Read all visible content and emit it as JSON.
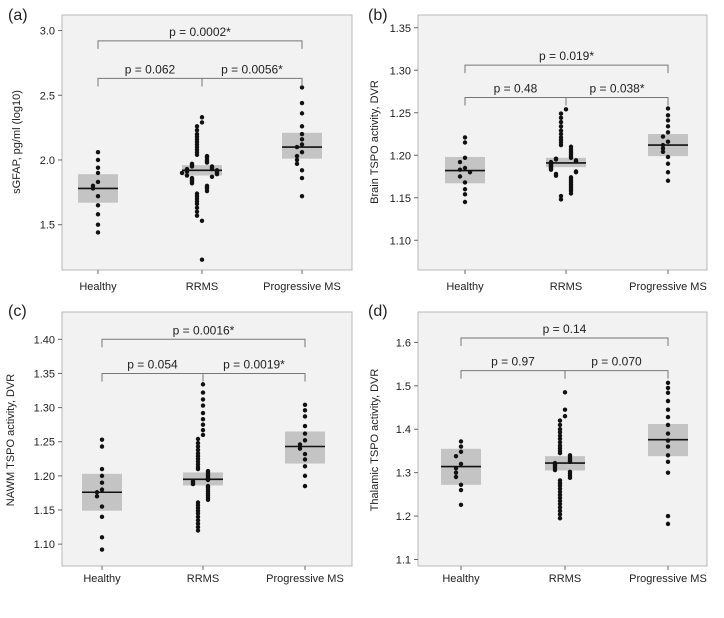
{
  "chart_data": [
    {
      "type": "scatter",
      "panel_label": "(a)",
      "ylabel": "sGFAP, pg/ml (log10)",
      "xlabel": "",
      "categories": [
        "Healthy",
        "RRMS",
        "Progressive MS"
      ],
      "ylim": [
        1.15,
        3.12
      ],
      "yticks": [
        "1.5",
        "2.0",
        "2.5",
        "3.0"
      ],
      "groups": [
        {
          "name": "Healthy",
          "median": 1.78,
          "q1": 1.67,
          "q3": 1.89,
          "points": [
            2.06,
            2.0,
            1.94,
            1.9,
            1.83,
            1.8,
            1.78,
            1.72,
            1.65,
            1.58,
            1.5,
            1.44
          ]
        },
        {
          "name": "RRMS",
          "median": 1.92,
          "q1": 1.88,
          "q3": 1.96,
          "points": [
            2.33,
            2.29,
            2.26,
            2.23,
            2.2,
            2.18,
            2.16,
            2.14,
            2.12,
            2.1,
            2.08,
            2.06,
            2.04,
            2.03,
            2.02,
            2.0,
            1.99,
            1.98,
            1.97,
            1.96,
            1.95,
            1.95,
            1.94,
            1.93,
            1.93,
            1.92,
            1.92,
            1.91,
            1.91,
            1.9,
            1.9,
            1.89,
            1.88,
            1.87,
            1.86,
            1.85,
            1.84,
            1.83,
            1.82,
            1.8,
            1.79,
            1.78,
            1.76,
            1.74,
            1.72,
            1.7,
            1.68,
            1.66,
            1.63,
            1.6,
            1.57,
            1.53,
            1.23
          ]
        },
        {
          "name": "Progressive MS",
          "median": 2.1,
          "q1": 2.01,
          "q3": 2.21,
          "points": [
            2.56,
            2.44,
            2.36,
            2.26,
            2.2,
            2.16,
            2.12,
            2.1,
            2.06,
            2.03,
            2.0,
            1.97,
            1.92,
            1.86,
            1.72
          ]
        }
      ],
      "comparisons": [
        {
          "label": "p = 0.062",
          "from": 0,
          "to": 1,
          "y": 2.63,
          "level": 1
        },
        {
          "label": "p = 0.0056*",
          "from": 1,
          "to": 2,
          "y": 2.63,
          "level": 1
        },
        {
          "label": "p = 0.0002*",
          "from": 0,
          "to": 2,
          "y": 2.92,
          "level": 2
        }
      ]
    },
    {
      "type": "scatter",
      "panel_label": "(b)",
      "ylabel": "Brain TSPO activity, DVR",
      "xlabel": "",
      "categories": [
        "Healthy",
        "RRMS",
        "Progressive MS"
      ],
      "ylim": [
        1.065,
        1.365
      ],
      "yticks": [
        "1.10",
        "1.15",
        "1.20",
        "1.25",
        "1.30",
        "1.35"
      ],
      "groups": [
        {
          "name": "Healthy",
          "median": 1.182,
          "q1": 1.167,
          "q3": 1.198,
          "points": [
            1.221,
            1.215,
            1.197,
            1.192,
            1.185,
            1.183,
            1.18,
            1.175,
            1.168,
            1.16,
            1.154,
            1.145
          ]
        },
        {
          "name": "RRMS",
          "median": 1.191,
          "q1": 1.186,
          "q3": 1.197,
          "points": [
            1.254,
            1.249,
            1.244,
            1.239,
            1.234,
            1.229,
            1.225,
            1.221,
            1.218,
            1.215,
            1.212,
            1.21,
            1.207,
            1.205,
            1.203,
            1.201,
            1.199,
            1.197,
            1.196,
            1.195,
            1.194,
            1.193,
            1.192,
            1.191,
            1.19,
            1.189,
            1.188,
            1.187,
            1.186,
            1.185,
            1.184,
            1.183,
            1.181,
            1.18,
            1.178,
            1.176,
            1.174,
            1.172,
            1.17,
            1.168,
            1.166,
            1.164,
            1.162,
            1.16,
            1.158,
            1.155,
            1.152,
            1.148
          ]
        },
        {
          "name": "Progressive MS",
          "median": 1.212,
          "q1": 1.199,
          "q3": 1.225,
          "points": [
            1.255,
            1.247,
            1.241,
            1.234,
            1.227,
            1.222,
            1.216,
            1.212,
            1.208,
            1.204,
            1.198,
            1.19,
            1.18,
            1.17
          ]
        }
      ],
      "comparisons": [
        {
          "label": "p = 0.48",
          "from": 0,
          "to": 1,
          "y": 1.268,
          "level": 1
        },
        {
          "label": "p = 0.038*",
          "from": 1,
          "to": 2,
          "y": 1.268,
          "level": 1
        },
        {
          "label": "p = 0.019*",
          "from": 0,
          "to": 2,
          "y": 1.306,
          "level": 2
        }
      ]
    },
    {
      "type": "scatter",
      "panel_label": "(c)",
      "ylabel": "NAWM TSPO activity, DVR",
      "xlabel": "",
      "categories": [
        "Healthy",
        "RRMS",
        "Progressive MS"
      ],
      "ylim": [
        1.068,
        1.44
      ],
      "yticks": [
        "1.10",
        "1.15",
        "1.20",
        "1.25",
        "1.30",
        "1.35",
        "1.40"
      ],
      "groups": [
        {
          "name": "Healthy",
          "median": 1.176,
          "q1": 1.149,
          "q3": 1.203,
          "points": [
            1.253,
            1.243,
            1.21,
            1.2,
            1.19,
            1.18,
            1.176,
            1.17,
            1.155,
            1.14,
            1.11,
            1.092
          ]
        },
        {
          "name": "RRMS",
          "median": 1.195,
          "q1": 1.186,
          "q3": 1.205,
          "points": [
            1.334,
            1.322,
            1.312,
            1.303,
            1.292,
            1.283,
            1.275,
            1.267,
            1.26,
            1.254,
            1.248,
            1.243,
            1.238,
            1.233,
            1.229,
            1.225,
            1.221,
            1.217,
            1.213,
            1.21,
            1.207,
            1.204,
            1.201,
            1.198,
            1.196,
            1.194,
            1.192,
            1.19,
            1.188,
            1.185,
            1.183,
            1.18,
            1.177,
            1.174,
            1.171,
            1.168,
            1.165,
            1.161,
            1.157,
            1.153,
            1.149,
            1.145,
            1.14,
            1.135,
            1.13,
            1.125,
            1.12
          ]
        },
        {
          "name": "Progressive MS",
          "median": 1.243,
          "q1": 1.218,
          "q3": 1.265,
          "points": [
            1.304,
            1.296,
            1.287,
            1.273,
            1.262,
            1.252,
            1.246,
            1.24,
            1.232,
            1.224,
            1.214,
            1.2,
            1.185
          ]
        }
      ],
      "comparisons": [
        {
          "label": "p = 0.054",
          "from": 0,
          "to": 1,
          "y": 1.35,
          "level": 1
        },
        {
          "label": "p = 0.0019*",
          "from": 1,
          "to": 2,
          "y": 1.35,
          "level": 1
        },
        {
          "label": "p = 0.0016*",
          "from": 0,
          "to": 2,
          "y": 1.4,
          "level": 2
        }
      ]
    },
    {
      "type": "scatter",
      "panel_label": "(d)",
      "ylabel": "Thalamic TSPO activity, DVR",
      "xlabel": "",
      "categories": [
        "Healthy",
        "RRMS",
        "Progressive MS"
      ],
      "ylim": [
        1.085,
        1.67
      ],
      "yticks": [
        "1.1",
        "1.2",
        "1.3",
        "1.4",
        "1.5",
        "1.6"
      ],
      "groups": [
        {
          "name": "Healthy",
          "median": 1.314,
          "q1": 1.272,
          "q3": 1.355,
          "points": [
            1.372,
            1.36,
            1.348,
            1.338,
            1.32,
            1.31,
            1.3,
            1.29,
            1.272,
            1.26,
            1.226
          ]
        },
        {
          "name": "RRMS",
          "median": 1.322,
          "q1": 1.305,
          "q3": 1.338,
          "points": [
            1.485,
            1.445,
            1.43,
            1.42,
            1.41,
            1.4,
            1.393,
            1.385,
            1.378,
            1.37,
            1.362,
            1.356,
            1.35,
            1.345,
            1.34,
            1.336,
            1.332,
            1.328,
            1.325,
            1.322,
            1.319,
            1.316,
            1.313,
            1.31,
            1.306,
            1.302,
            1.298,
            1.293,
            1.288,
            1.282,
            1.276,
            1.27,
            1.263,
            1.256,
            1.249,
            1.242,
            1.235,
            1.228,
            1.22,
            1.212,
            1.204,
            1.195
          ]
        },
        {
          "name": "Progressive MS",
          "median": 1.376,
          "q1": 1.338,
          "q3": 1.412,
          "points": [
            1.507,
            1.495,
            1.484,
            1.465,
            1.445,
            1.428,
            1.41,
            1.39,
            1.374,
            1.36,
            1.34,
            1.325,
            1.3,
            1.2,
            1.182
          ]
        }
      ],
      "comparisons": [
        {
          "label": "p = 0.97",
          "from": 0,
          "to": 1,
          "y": 1.535,
          "level": 1
        },
        {
          "label": "p = 0.070",
          "from": 1,
          "to": 2,
          "y": 1.535,
          "level": 1
        },
        {
          "label": "p = 0.14",
          "from": 0,
          "to": 2,
          "y": 1.61,
          "level": 2
        }
      ]
    }
  ]
}
